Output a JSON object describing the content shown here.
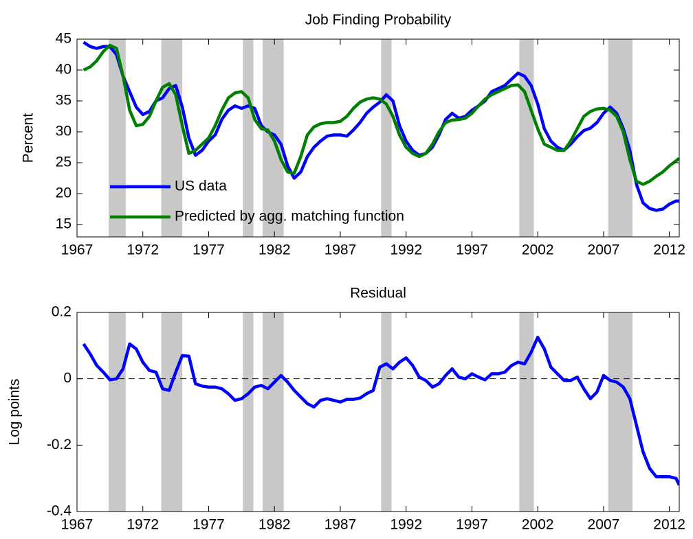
{
  "chart_data": [
    {
      "type": "line",
      "title": "Job Finding Probability",
      "ylabel": "Percent",
      "xlim": [
        1967,
        2012.75
      ],
      "xticks": [
        1967,
        1972,
        1977,
        1982,
        1987,
        1992,
        1997,
        2002,
        2007,
        2012
      ],
      "ylim": [
        13,
        45
      ],
      "yticks": [
        15,
        20,
        25,
        30,
        35,
        40,
        45
      ],
      "legend": "lower left",
      "shading_color": "#c8c8c8",
      "shading": [
        [
          1969.4,
          1970.7
        ],
        [
          1973.4,
          1975.0
        ],
        [
          1979.6,
          1980.4
        ],
        [
          1981.1,
          1982.7
        ],
        [
          1990.1,
          1990.9
        ],
        [
          2000.6,
          2001.7
        ],
        [
          2007.35,
          2009.2
        ]
      ],
      "x": [
        1967.5,
        1968,
        1968.5,
        1969,
        1969.5,
        1970,
        1970.5,
        1971,
        1971.5,
        1972,
        1972.5,
        1973,
        1973.5,
        1974,
        1974.5,
        1975,
        1975.5,
        1976,
        1976.5,
        1977,
        1977.5,
        1978,
        1978.5,
        1979,
        1979.5,
        1980,
        1980.5,
        1981,
        1981.5,
        1982,
        1982.5,
        1983,
        1983.5,
        1984,
        1984.5,
        1985,
        1985.5,
        1986,
        1986.5,
        1987,
        1987.5,
        1988,
        1988.5,
        1989,
        1989.5,
        1990,
        1990.5,
        1991,
        1991.5,
        1992,
        1992.5,
        1993,
        1993.5,
        1994,
        1994.5,
        1995,
        1995.5,
        1996,
        1996.5,
        1997,
        1997.5,
        1998,
        1998.5,
        1999,
        1999.5,
        2000,
        2000.5,
        2001,
        2001.5,
        2002,
        2002.5,
        2003,
        2003.5,
        2004,
        2004.5,
        2005,
        2005.5,
        2006,
        2006.5,
        2007,
        2007.5,
        2008,
        2008.5,
        2009,
        2009.5,
        2010,
        2010.5,
        2011,
        2011.5,
        2012,
        2012.5,
        2012.75
      ],
      "series": [
        {
          "name": "US data",
          "color": "#0000ff",
          "values": [
            44.5,
            43.8,
            43.5,
            43.8,
            43.8,
            42.5,
            39,
            36.5,
            34,
            32.8,
            33.3,
            35,
            35.5,
            37,
            37.5,
            34,
            29,
            26.2,
            27,
            28.5,
            29.5,
            32,
            33.5,
            34.2,
            33.8,
            34.2,
            33.8,
            31,
            30,
            29.5,
            28,
            24.5,
            22.5,
            23.5,
            26,
            27.5,
            28.5,
            29.3,
            29.5,
            29.5,
            29.3,
            30.3,
            31.5,
            33,
            34,
            34.8,
            36,
            35,
            31,
            28.5,
            27,
            26.2,
            26.5,
            27.5,
            29.5,
            32,
            33,
            32.2,
            32.5,
            33.5,
            34.2,
            35,
            36.5,
            37,
            37.5,
            38.5,
            39.5,
            39,
            37.5,
            34.5,
            30.5,
            28.5,
            27.5,
            27,
            28,
            29.2,
            30.2,
            30.6,
            31.5,
            33,
            34,
            33,
            30.5,
            27,
            21.5,
            18.5,
            17.6,
            17.3,
            17.5,
            18.3,
            18.8,
            18.8
          ]
        },
        {
          "name": "Predicted by agg. matching function",
          "color": "#007f00",
          "values": [
            40,
            40.5,
            41.5,
            43,
            44,
            43.5,
            39,
            33.5,
            31,
            31.2,
            32.5,
            35,
            37.2,
            37.8,
            36,
            31,
            26.5,
            27,
            28,
            29,
            31,
            33.5,
            35.5,
            36.3,
            36.5,
            35.5,
            32,
            30.5,
            30.3,
            28.5,
            25.5,
            23.5,
            23.3,
            26,
            29.5,
            30.8,
            31.3,
            31.5,
            31.5,
            31.7,
            32.5,
            33.8,
            34.8,
            35.3,
            35.5,
            35.3,
            34.5,
            32.5,
            29.5,
            27.5,
            26.5,
            26,
            26.5,
            28,
            30,
            31.5,
            31.9,
            32,
            32.2,
            33,
            34.2,
            35.3,
            36,
            36.5,
            37,
            37.5,
            37.6,
            36.5,
            33.5,
            30.5,
            28,
            27.5,
            27,
            27,
            28.5,
            30.5,
            32.5,
            33.3,
            33.7,
            33.8,
            33.5,
            32.5,
            30,
            25.5,
            22,
            21.5,
            22,
            22.8,
            23.5,
            24.5,
            25.3,
            25.7
          ]
        }
      ]
    },
    {
      "type": "line",
      "title": "Residual",
      "ylabel": "Log points",
      "xlim": [
        1967,
        2012.75
      ],
      "xticks": [
        1967,
        1972,
        1977,
        1982,
        1987,
        1992,
        1997,
        2002,
        2007,
        2012
      ],
      "ylim": [
        -0.4,
        0.2
      ],
      "yticks": [
        -0.4,
        -0.2,
        0,
        0.2
      ],
      "reference_line": 0,
      "shading_color": "#c8c8c8",
      "shading": [
        [
          1969.4,
          1970.7
        ],
        [
          1973.4,
          1975.0
        ],
        [
          1979.6,
          1980.4
        ],
        [
          1981.1,
          1982.7
        ],
        [
          1990.1,
          1990.9
        ],
        [
          2000.6,
          2001.7
        ],
        [
          2007.35,
          2009.2
        ]
      ],
      "x": [
        1967.5,
        1968,
        1968.5,
        1969,
        1969.5,
        1970,
        1970.5,
        1971,
        1971.5,
        1972,
        1972.5,
        1973,
        1973.5,
        1974,
        1974.5,
        1975,
        1975.5,
        1976,
        1976.5,
        1977,
        1977.5,
        1978,
        1978.5,
        1979,
        1979.5,
        1980,
        1980.5,
        1981,
        1981.5,
        1982,
        1982.5,
        1983,
        1983.5,
        1984,
        1984.5,
        1985,
        1985.5,
        1986,
        1986.5,
        1987,
        1987.5,
        1988,
        1988.5,
        1989,
        1989.5,
        1990,
        1990.5,
        1991,
        1991.5,
        1992,
        1992.5,
        1993,
        1993.5,
        1994,
        1994.5,
        1995,
        1995.5,
        1996,
        1996.5,
        1997,
        1997.5,
        1998,
        1998.5,
        1999,
        1999.5,
        2000,
        2000.5,
        2001,
        2001.5,
        2002,
        2002.5,
        2003,
        2003.5,
        2004,
        2004.5,
        2005,
        2005.5,
        2006,
        2006.5,
        2007,
        2007.5,
        2008,
        2008.5,
        2009,
        2009.5,
        2010,
        2010.5,
        2011,
        2011.5,
        2012,
        2012.5,
        2012.75
      ],
      "series": [
        {
          "color": "#0000ff",
          "values": [
            0.105,
            0.075,
            0.04,
            0.02,
            -0.003,
            0,
            0.03,
            0.105,
            0.09,
            0.05,
            0.025,
            0.02,
            -0.03,
            -0.035,
            0.02,
            0.07,
            0.068,
            -0.015,
            -0.022,
            -0.025,
            -0.025,
            -0.03,
            -0.045,
            -0.065,
            -0.06,
            -0.045,
            -0.025,
            -0.02,
            -0.03,
            -0.01,
            0.01,
            -0.01,
            -0.035,
            -0.055,
            -0.075,
            -0.085,
            -0.065,
            -0.06,
            -0.065,
            -0.07,
            -0.062,
            -0.062,
            -0.058,
            -0.045,
            -0.035,
            0.035,
            0.045,
            0.03,
            0.05,
            0.063,
            0.04,
            0.005,
            -0.005,
            -0.025,
            -0.015,
            0.01,
            0.03,
            0.005,
            0,
            0.015,
            0.005,
            -0.003,
            0.015,
            0.015,
            0.02,
            0.04,
            0.05,
            0.045,
            0.08,
            0.125,
            0.09,
            0.035,
            0.015,
            -0.005,
            -0.005,
            0.005,
            -0.03,
            -0.06,
            -0.04,
            0.01,
            -0.005,
            -0.01,
            -0.025,
            -0.06,
            -0.14,
            -0.22,
            -0.27,
            -0.295,
            -0.295,
            -0.295,
            -0.3,
            -0.32
          ]
        }
      ]
    }
  ]
}
